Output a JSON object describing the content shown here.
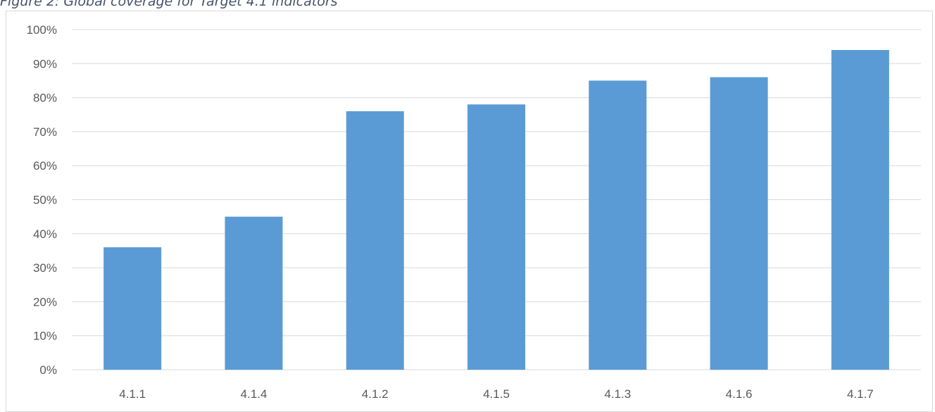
{
  "caption": "Figure 2: Global coverage for Target 4.1 indicators",
  "chart_data": {
    "type": "bar",
    "title": "",
    "xlabel": "",
    "ylabel": "",
    "categories": [
      "4.1.1",
      "4.1.4",
      "4.1.2",
      "4.1.5",
      "4.1.3",
      "4.1.6",
      "4.1.7"
    ],
    "values": [
      36,
      45,
      76,
      78,
      85,
      86,
      94
    ],
    "value_format": "percent",
    "ylim": [
      0,
      100
    ],
    "ytick_step": 10,
    "yticks": [
      "0%",
      "10%",
      "20%",
      "30%",
      "40%",
      "50%",
      "60%",
      "70%",
      "80%",
      "90%",
      "100%"
    ],
    "grid": true,
    "legend": "none",
    "bar_color": "#5b9bd5",
    "grid_color": "#d9d9d9"
  }
}
